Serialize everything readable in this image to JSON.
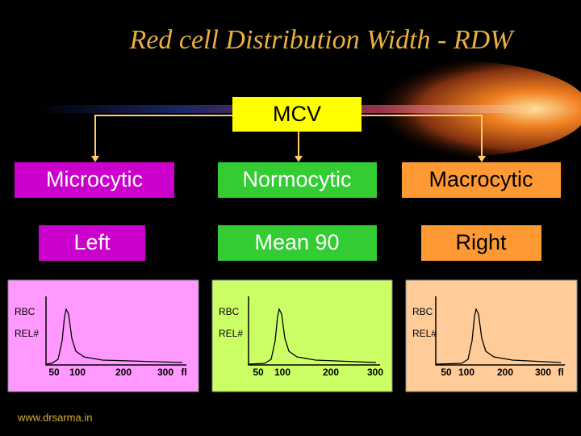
{
  "title": "Red cell Distribution Width - RDW",
  "root": {
    "label": "MCV"
  },
  "nodes": [
    {
      "label": "Microcytic",
      "shift": "Left"
    },
    {
      "label": "Normocytic",
      "shift": "Mean 90"
    },
    {
      "label": "Macrocytic",
      "shift": "Right"
    }
  ],
  "panels": [
    {
      "labels": [
        "RBC",
        "REL#"
      ],
      "ticks": [
        "50",
        "100",
        "200",
        "300",
        "fl"
      ]
    },
    {
      "labels": [
        "RBC",
        "REL#"
      ],
      "ticks": [
        "50",
        "100",
        "200",
        "300"
      ]
    },
    {
      "labels": [
        "RBC",
        "REL#"
      ],
      "ticks": [
        "50",
        "100",
        "200",
        "300",
        "fl"
      ]
    }
  ],
  "footer": "www.drsarma.in"
}
